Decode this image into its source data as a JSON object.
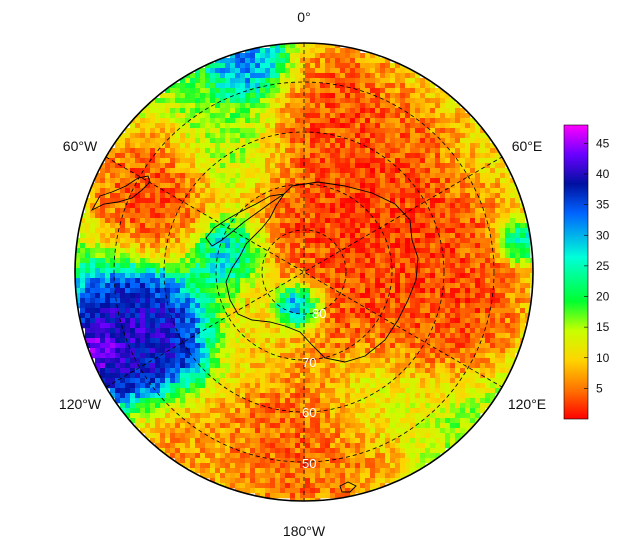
{
  "map": {
    "projection": "south-polar-stereographic",
    "longitude_labels": {
      "top": "0°",
      "upper_left": "60°W",
      "upper_right": "60°E",
      "lower_left": "120°W",
      "lower_right": "120°E",
      "bottom": "180°W"
    },
    "latitude_labels": [
      "80",
      "70",
      "60",
      "50"
    ],
    "colorbar": {
      "min": 0,
      "max": 48,
      "ticks": [
        "5",
        "10",
        "15",
        "20",
        "25",
        "30",
        "35",
        "40",
        "45"
      ],
      "colors": [
        "#ff0000",
        "#ff6a00",
        "#ffd400",
        "#c8ff00",
        "#00ff30",
        "#00ffd8",
        "#0064ff",
        "#0010a0",
        "#6a00ff",
        "#ff00ff"
      ]
    }
  }
}
